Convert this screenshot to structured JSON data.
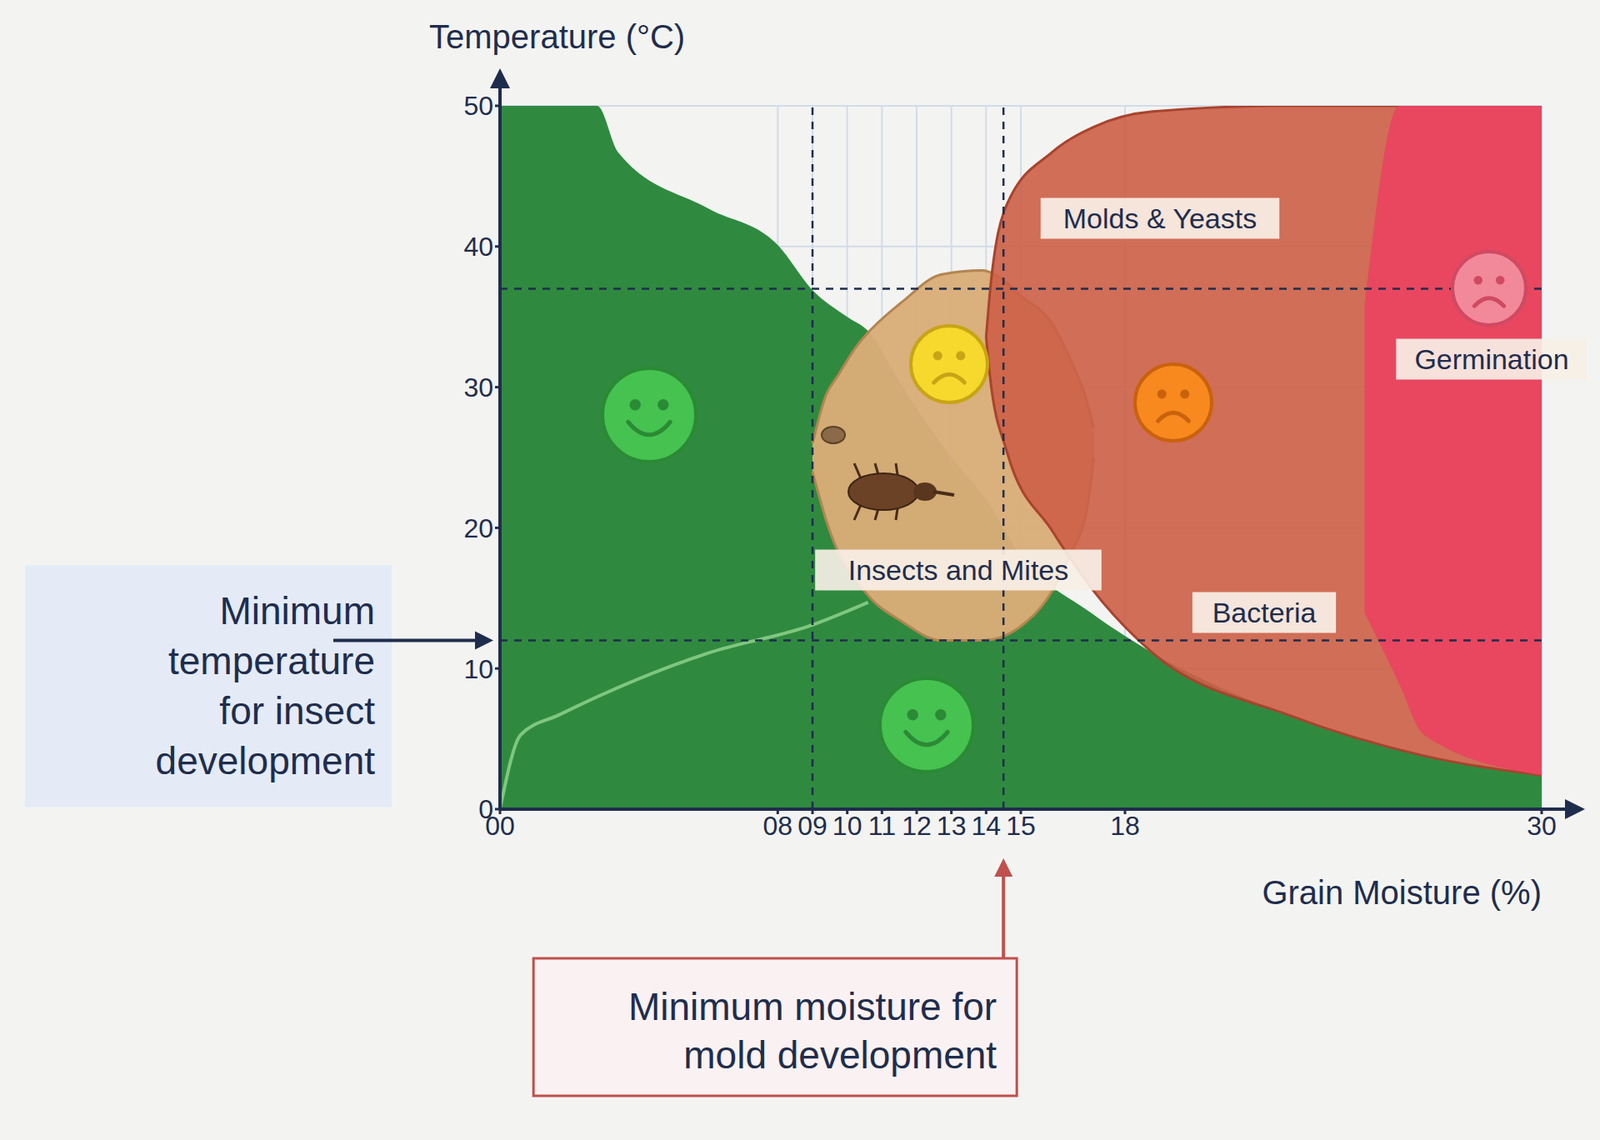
{
  "chart_data": {
    "type": "area",
    "x_label": "Grain Moisture (%)",
    "y_label": "Temperature (°C)",
    "xlim": [
      0,
      30
    ],
    "xticks": [
      {
        "value": 0,
        "label": "00"
      },
      {
        "value": 8,
        "label": "08"
      },
      {
        "value": 9,
        "label": "09"
      },
      10,
      11,
      12,
      13,
      14,
      15,
      18,
      30
    ],
    "ylim": [
      0,
      50
    ],
    "yticks": [
      0,
      10,
      20,
      30,
      40,
      50
    ],
    "grid": true,
    "series": [
      {
        "color": "#2f8a3f",
        "x": [
          0,
          2.8,
          3.4,
          6.0,
          8,
          9,
          10,
          10.6,
          11.6,
          13,
          14,
          15,
          17,
          18.8,
          22.7,
          26.6,
          30
        ],
        "low": [
          0,
          0,
          0,
          0,
          0,
          0,
          0,
          0,
          0,
          0,
          0,
          0,
          0,
          0,
          0,
          0,
          0
        ],
        "high": [
          50,
          50,
          46.7,
          42.7,
          40.1,
          36.9,
          35,
          34,
          30,
          25,
          22,
          18,
          14,
          11.1,
          6.7,
          3.8,
          2.4
        ]
      },
      {
        "type": "line",
        "color": "#7fc77f",
        "x": [
          0,
          0.6,
          1.7,
          6,
          9,
          10.6
        ],
        "values": [
          0,
          5.3,
          6.7,
          11.1,
          13.1,
          14.7
        ]
      },
      {
        "name": "Insects and Mites",
        "color": "#d8ad78",
        "x": [
          9.0,
          9.4,
          9.7,
          10.3,
          10.5,
          11.6,
          12.7,
          13.9,
          14.4,
          15.0,
          15.9,
          16.4,
          16.9,
          17.1
        ],
        "low": [
          24,
          20.5,
          18.5,
          16.2,
          15.5,
          13.3,
          12,
          12,
          12.2,
          13,
          15.5,
          18,
          21.3,
          25
        ],
        "high": [
          26,
          29.5,
          30.7,
          33,
          33.6,
          36.1,
          38,
          38.3,
          37.8,
          36.5,
          34.5,
          32.1,
          29,
          27.1
        ]
      },
      {
        "name": "Molds & Yeasts",
        "color": "#cc5f46",
        "x": [
          14.0,
          14.1,
          14.6,
          15.9,
          17.1,
          18.8,
          22.7,
          26.6,
          30
        ],
        "low": [
          33.6,
          31,
          25.4,
          19.8,
          15.5,
          11.1,
          6.7,
          3.8,
          2.4
        ],
        "high": [
          33.6,
          36.5,
          43,
          46.7,
          48.5,
          49.6,
          50,
          50,
          50
        ]
      },
      {
        "name": "Germination",
        "color": "#e9435f",
        "x": [
          24.9,
          25.9,
          26.6,
          30
        ],
        "low": [
          14,
          8.9,
          5.3,
          2.4
        ],
        "high": [
          35.8,
          50,
          50,
          50
        ]
      }
    ],
    "annotations": [
      "Bacteria"
    ],
    "reference_lines": [
      {
        "axis": "y",
        "value": 12,
        "label": "Minimum temperature for insect development"
      },
      {
        "axis": "x",
        "value": 14.5,
        "label": "Minimum moisture for mold development"
      },
      {
        "axis": "x",
        "value": 9
      },
      {
        "axis": "y",
        "value": 37
      }
    ]
  }
}
